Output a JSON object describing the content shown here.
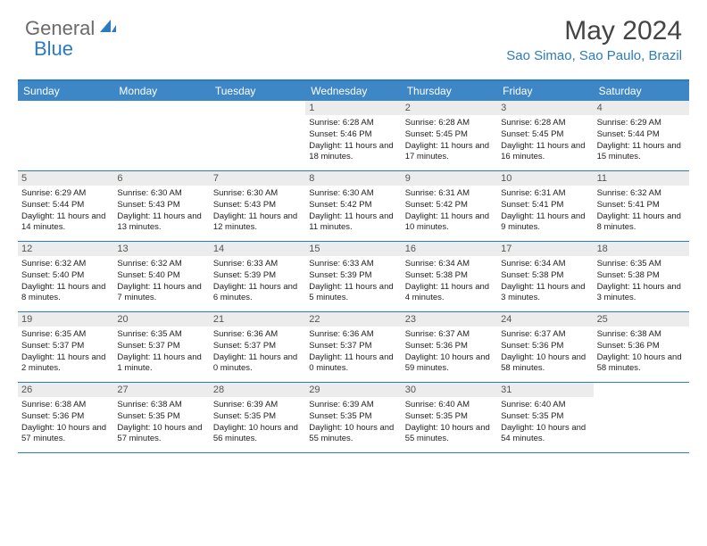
{
  "logo": {
    "part1": "General",
    "part2": "Blue"
  },
  "title": "May 2024",
  "location": "Sao Simao, Sao Paulo, Brazil",
  "day_headers": [
    "Sunday",
    "Monday",
    "Tuesday",
    "Wednesday",
    "Thursday",
    "Friday",
    "Saturday"
  ],
  "colors": {
    "accent": "#2b7bbf",
    "header_bg": "#3d87c7",
    "daynum_bg": "#ececec",
    "logo_gray": "#6b6b6b"
  },
  "weeks": [
    [
      {
        "n": "",
        "sr": "",
        "ss": "",
        "dl": ""
      },
      {
        "n": "",
        "sr": "",
        "ss": "",
        "dl": ""
      },
      {
        "n": "",
        "sr": "",
        "ss": "",
        "dl": ""
      },
      {
        "n": "1",
        "sr": "Sunrise: 6:28 AM",
        "ss": "Sunset: 5:46 PM",
        "dl": "Daylight: 11 hours and 18 minutes."
      },
      {
        "n": "2",
        "sr": "Sunrise: 6:28 AM",
        "ss": "Sunset: 5:45 PM",
        "dl": "Daylight: 11 hours and 17 minutes."
      },
      {
        "n": "3",
        "sr": "Sunrise: 6:28 AM",
        "ss": "Sunset: 5:45 PM",
        "dl": "Daylight: 11 hours and 16 minutes."
      },
      {
        "n": "4",
        "sr": "Sunrise: 6:29 AM",
        "ss": "Sunset: 5:44 PM",
        "dl": "Daylight: 11 hours and 15 minutes."
      }
    ],
    [
      {
        "n": "5",
        "sr": "Sunrise: 6:29 AM",
        "ss": "Sunset: 5:44 PM",
        "dl": "Daylight: 11 hours and 14 minutes."
      },
      {
        "n": "6",
        "sr": "Sunrise: 6:30 AM",
        "ss": "Sunset: 5:43 PM",
        "dl": "Daylight: 11 hours and 13 minutes."
      },
      {
        "n": "7",
        "sr": "Sunrise: 6:30 AM",
        "ss": "Sunset: 5:43 PM",
        "dl": "Daylight: 11 hours and 12 minutes."
      },
      {
        "n": "8",
        "sr": "Sunrise: 6:30 AM",
        "ss": "Sunset: 5:42 PM",
        "dl": "Daylight: 11 hours and 11 minutes."
      },
      {
        "n": "9",
        "sr": "Sunrise: 6:31 AM",
        "ss": "Sunset: 5:42 PM",
        "dl": "Daylight: 11 hours and 10 minutes."
      },
      {
        "n": "10",
        "sr": "Sunrise: 6:31 AM",
        "ss": "Sunset: 5:41 PM",
        "dl": "Daylight: 11 hours and 9 minutes."
      },
      {
        "n": "11",
        "sr": "Sunrise: 6:32 AM",
        "ss": "Sunset: 5:41 PM",
        "dl": "Daylight: 11 hours and 8 minutes."
      }
    ],
    [
      {
        "n": "12",
        "sr": "Sunrise: 6:32 AM",
        "ss": "Sunset: 5:40 PM",
        "dl": "Daylight: 11 hours and 8 minutes."
      },
      {
        "n": "13",
        "sr": "Sunrise: 6:32 AM",
        "ss": "Sunset: 5:40 PM",
        "dl": "Daylight: 11 hours and 7 minutes."
      },
      {
        "n": "14",
        "sr": "Sunrise: 6:33 AM",
        "ss": "Sunset: 5:39 PM",
        "dl": "Daylight: 11 hours and 6 minutes."
      },
      {
        "n": "15",
        "sr": "Sunrise: 6:33 AM",
        "ss": "Sunset: 5:39 PM",
        "dl": "Daylight: 11 hours and 5 minutes."
      },
      {
        "n": "16",
        "sr": "Sunrise: 6:34 AM",
        "ss": "Sunset: 5:38 PM",
        "dl": "Daylight: 11 hours and 4 minutes."
      },
      {
        "n": "17",
        "sr": "Sunrise: 6:34 AM",
        "ss": "Sunset: 5:38 PM",
        "dl": "Daylight: 11 hours and 3 minutes."
      },
      {
        "n": "18",
        "sr": "Sunrise: 6:35 AM",
        "ss": "Sunset: 5:38 PM",
        "dl": "Daylight: 11 hours and 3 minutes."
      }
    ],
    [
      {
        "n": "19",
        "sr": "Sunrise: 6:35 AM",
        "ss": "Sunset: 5:37 PM",
        "dl": "Daylight: 11 hours and 2 minutes."
      },
      {
        "n": "20",
        "sr": "Sunrise: 6:35 AM",
        "ss": "Sunset: 5:37 PM",
        "dl": "Daylight: 11 hours and 1 minute."
      },
      {
        "n": "21",
        "sr": "Sunrise: 6:36 AM",
        "ss": "Sunset: 5:37 PM",
        "dl": "Daylight: 11 hours and 0 minutes."
      },
      {
        "n": "22",
        "sr": "Sunrise: 6:36 AM",
        "ss": "Sunset: 5:37 PM",
        "dl": "Daylight: 11 hours and 0 minutes."
      },
      {
        "n": "23",
        "sr": "Sunrise: 6:37 AM",
        "ss": "Sunset: 5:36 PM",
        "dl": "Daylight: 10 hours and 59 minutes."
      },
      {
        "n": "24",
        "sr": "Sunrise: 6:37 AM",
        "ss": "Sunset: 5:36 PM",
        "dl": "Daylight: 10 hours and 58 minutes."
      },
      {
        "n": "25",
        "sr": "Sunrise: 6:38 AM",
        "ss": "Sunset: 5:36 PM",
        "dl": "Daylight: 10 hours and 58 minutes."
      }
    ],
    [
      {
        "n": "26",
        "sr": "Sunrise: 6:38 AM",
        "ss": "Sunset: 5:36 PM",
        "dl": "Daylight: 10 hours and 57 minutes."
      },
      {
        "n": "27",
        "sr": "Sunrise: 6:38 AM",
        "ss": "Sunset: 5:35 PM",
        "dl": "Daylight: 10 hours and 57 minutes."
      },
      {
        "n": "28",
        "sr": "Sunrise: 6:39 AM",
        "ss": "Sunset: 5:35 PM",
        "dl": "Daylight: 10 hours and 56 minutes."
      },
      {
        "n": "29",
        "sr": "Sunrise: 6:39 AM",
        "ss": "Sunset: 5:35 PM",
        "dl": "Daylight: 10 hours and 55 minutes."
      },
      {
        "n": "30",
        "sr": "Sunrise: 6:40 AM",
        "ss": "Sunset: 5:35 PM",
        "dl": "Daylight: 10 hours and 55 minutes."
      },
      {
        "n": "31",
        "sr": "Sunrise: 6:40 AM",
        "ss": "Sunset: 5:35 PM",
        "dl": "Daylight: 10 hours and 54 minutes."
      },
      {
        "n": "",
        "sr": "",
        "ss": "",
        "dl": ""
      }
    ]
  ]
}
